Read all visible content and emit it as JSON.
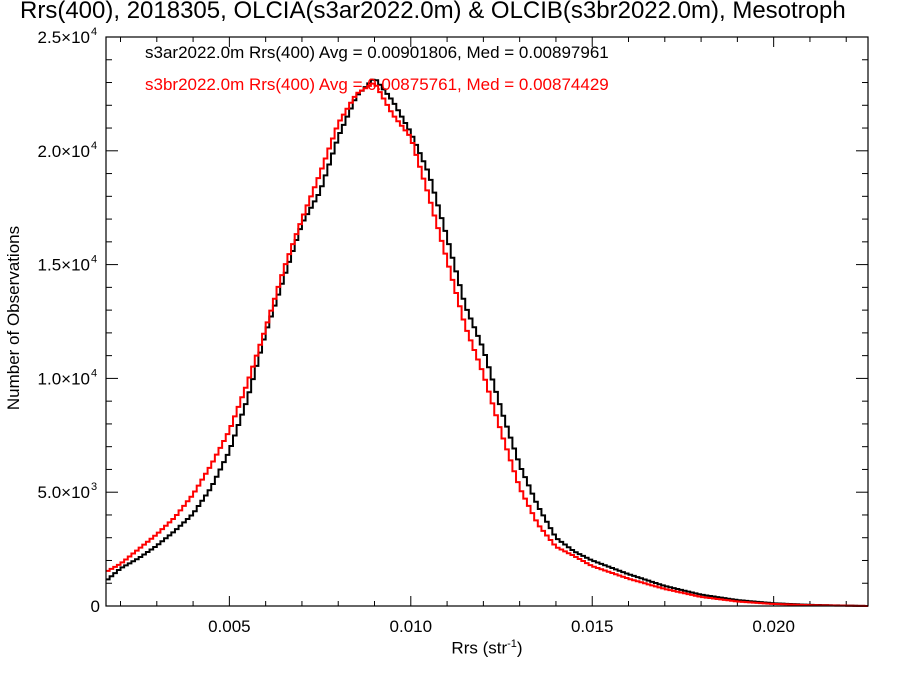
{
  "chart_data": {
    "type": "line",
    "title": "Rrs(400), 2018305, OLCIA(s3ar2022.0m) & OLCIB(s3br2022.0m), Mesotroph",
    "xlabel": "Rrs (str",
    "xlabel_sup": "-1",
    "xlabel_tail": ")",
    "ylabel": "Number of Observations",
    "xlim": [
      0.0016,
      0.0226
    ],
    "ylim": [
      0,
      25000
    ],
    "x_ticks": [
      {
        "value": 0.005,
        "label": "0.005"
      },
      {
        "value": 0.01,
        "label": "0.010"
      },
      {
        "value": 0.015,
        "label": "0.015"
      },
      {
        "value": 0.02,
        "label": "0.020"
      }
    ],
    "y_ticks": [
      {
        "value": 0,
        "mant": "0",
        "exp": ""
      },
      {
        "value": 5000,
        "mant": "5.0×10",
        "exp": "3"
      },
      {
        "value": 10000,
        "mant": "1.0×10",
        "exp": "4"
      },
      {
        "value": 15000,
        "mant": "1.5×10",
        "exp": "4"
      },
      {
        "value": 20000,
        "mant": "2.0×10",
        "exp": "4"
      },
      {
        "value": 25000,
        "mant": "2.5×10",
        "exp": "4"
      }
    ],
    "series": [
      {
        "name": "s3ar2022.0m Rrs(400)",
        "legend": "s3ar2022.0m Rrs(400) Avg = 0.00901806, Med = 0.00897961",
        "color": "#000000",
        "x": [
          0.0016,
          0.002,
          0.0025,
          0.003,
          0.0035,
          0.004,
          0.0045,
          0.005,
          0.0055,
          0.006,
          0.0065,
          0.007,
          0.0075,
          0.008,
          0.0085,
          0.009,
          0.0095,
          0.01,
          0.0105,
          0.011,
          0.0115,
          0.012,
          0.0125,
          0.013,
          0.0135,
          0.014,
          0.0145,
          0.015,
          0.016,
          0.017,
          0.018,
          0.019,
          0.02,
          0.021,
          0.0226
        ],
        "y": [
          1100,
          1650,
          2100,
          2650,
          3300,
          4050,
          5200,
          6800,
          9100,
          12000,
          14400,
          16800,
          18200,
          20600,
          22400,
          23200,
          22200,
          20800,
          19000,
          16200,
          13200,
          11300,
          8600,
          6200,
          4400,
          3000,
          2400,
          2000,
          1400,
          880,
          500,
          260,
          120,
          50,
          0
        ]
      },
      {
        "name": "s3br2022.0m Rrs(400)",
        "legend": "s3br2022.0m Rrs(400) Avg = 0.00875761, Med = 0.00874429",
        "color": "#ff0000",
        "x": [
          0.0016,
          0.002,
          0.0025,
          0.003,
          0.0035,
          0.004,
          0.0045,
          0.005,
          0.0055,
          0.006,
          0.0065,
          0.007,
          0.0075,
          0.008,
          0.0085,
          0.009,
          0.0095,
          0.01,
          0.0105,
          0.011,
          0.0115,
          0.012,
          0.0125,
          0.013,
          0.0135,
          0.014,
          0.0145,
          0.015,
          0.016,
          0.017,
          0.018,
          0.019,
          0.02,
          0.021,
          0.0226
        ],
        "y": [
          1500,
          1850,
          2500,
          3150,
          3900,
          4900,
          6200,
          7700,
          9800,
          12200,
          14800,
          17000,
          19000,
          21200,
          22500,
          23000,
          21600,
          20600,
          18000,
          15200,
          12300,
          10200,
          7600,
          5200,
          3600,
          2600,
          2200,
          1750,
          1200,
          750,
          400,
          200,
          90,
          35,
          0
        ]
      }
    ]
  }
}
